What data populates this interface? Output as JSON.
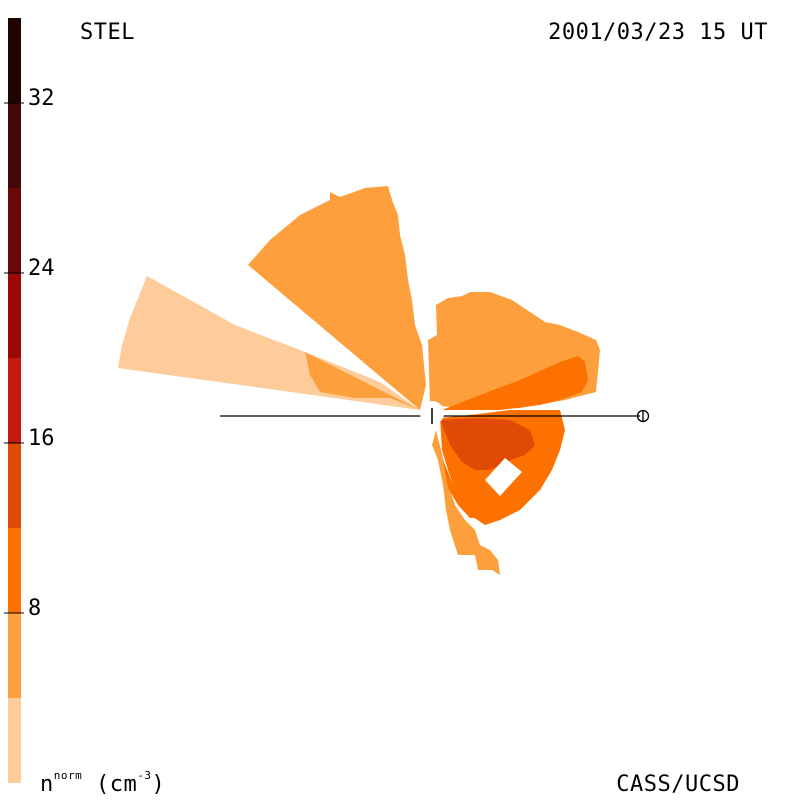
{
  "header": {
    "left": "STEL",
    "right": "2001/03/23 15 UT"
  },
  "footer": {
    "right": "CASS/UCSD"
  },
  "colorbar": {
    "unit_prefix": "n",
    "unit_sup": "norm",
    "unit_mid": " (cm",
    "unit_sup2": "-3",
    "unit_suffix": ")",
    "ticks": [
      "8",
      "16",
      "24",
      "32"
    ],
    "tick_values": [
      8,
      16,
      24,
      32
    ],
    "range": [
      0,
      36
    ],
    "bands": [
      {
        "from": 0,
        "to": 4,
        "color": "#fdcc9a"
      },
      {
        "from": 4,
        "to": 8,
        "color": "#fd9f3c"
      },
      {
        "from": 8,
        "to": 12,
        "color": "#fd7100"
      },
      {
        "from": 12,
        "to": 16,
        "color": "#e04a04"
      },
      {
        "from": 16,
        "to": 20,
        "color": "#c21a0c"
      },
      {
        "from": 20,
        "to": 24,
        "color": "#9a0808"
      },
      {
        "from": 24,
        "to": 28,
        "color": "#6b0808"
      },
      {
        "from": 28,
        "to": 32,
        "color": "#400808"
      },
      {
        "from": 32,
        "to": 36,
        "color": "#1e0404"
      }
    ]
  },
  "chart_data": {
    "type": "heatmap",
    "description_free": true,
    "variable": "normalized density",
    "levels": [
      {
        "range": [
          0,
          4
        ],
        "color": "#fdcc9a"
      },
      {
        "range": [
          4,
          8
        ],
        "color": "#fd9f3c"
      },
      {
        "range": [
          8,
          12
        ],
        "color": "#fd7100"
      },
      {
        "range": [
          12,
          16
        ],
        "color": "#e04a04"
      }
    ],
    "markers": [
      "sun-marker",
      "earth-marker"
    ]
  }
}
